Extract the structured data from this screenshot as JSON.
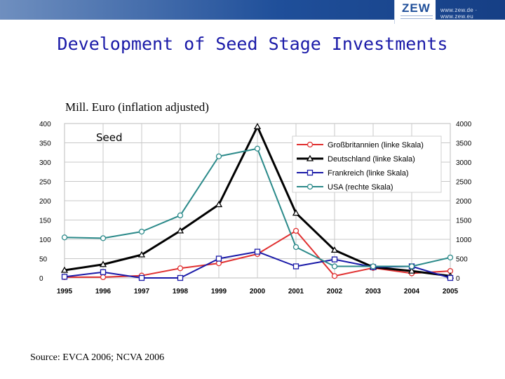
{
  "header": {
    "logo": "ZEW",
    "url": "www.zew.de · www.zew.eu"
  },
  "title": "Development of Seed Stage Investments",
  "subtitle": "Mill. Euro (inflation adjusted)",
  "source": "Source: EVCA 2006; NCVA 2006",
  "chart_data": {
    "type": "line",
    "annotation": "Seed",
    "x": [
      "1995",
      "1996",
      "1997",
      "1998",
      "1999",
      "2000",
      "2001",
      "2002",
      "2003",
      "2004",
      "2005"
    ],
    "ylim_left": [
      0,
      400
    ],
    "ylim_right": [
      0,
      4000
    ],
    "yticks_left": [
      0,
      50,
      100,
      150,
      200,
      250,
      300,
      350,
      400
    ],
    "yticks_right": [
      0,
      500,
      1000,
      1500,
      2000,
      2500,
      3000,
      3500,
      4000
    ],
    "grid": true,
    "legend_position": "top-right",
    "series": [
      {
        "name": "Großbritannien (linke Skala)",
        "axis": "left",
        "color": "#e03030",
        "marker": "circle",
        "values": [
          2,
          2,
          6,
          25,
          38,
          62,
          122,
          5,
          26,
          12,
          18
        ]
      },
      {
        "name": "Deutschland (linke Skala)",
        "axis": "left",
        "color": "#000000",
        "marker": "triangle",
        "values": [
          20,
          35,
          60,
          122,
          190,
          392,
          168,
          72,
          28,
          18,
          5
        ]
      },
      {
        "name": "Frankreich (linke Skala)",
        "axis": "left",
        "color": "#1a1aa8",
        "marker": "square",
        "values": [
          3,
          15,
          0,
          0,
          50,
          68,
          30,
          48,
          28,
          30,
          0
        ]
      },
      {
        "name": "USA (rechte Skala)",
        "axis": "right",
        "color": "#2b8a8a",
        "marker": "circle",
        "values": [
          1050,
          1030,
          1200,
          1620,
          3150,
          3350,
          800,
          300,
          300,
          300,
          530
        ]
      }
    ]
  }
}
